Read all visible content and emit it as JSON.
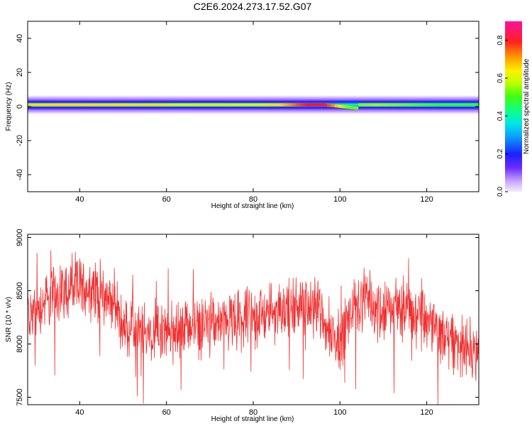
{
  "title": "C2E6.2024.273.17.52.G07",
  "chart_data": [
    {
      "type": "heatmap",
      "title": "C2E6.2024.273.17.52.G07",
      "xlabel": "Height of straight line (km)",
      "ylabel": "Frequency (Hz)",
      "xlim": [
        28,
        132
      ],
      "ylim": [
        -50,
        50
      ],
      "xticks": [
        40,
        60,
        80,
        100,
        120
      ],
      "yticks": [
        40,
        20,
        0,
        -20,
        -40
      ],
      "band_center_freq": 1,
      "band_half_width_hz": 4,
      "ridge_profile": {
        "x": [
          28,
          35,
          45,
          55,
          65,
          75,
          82,
          86,
          90,
          93,
          96,
          98,
          100,
          102,
          108,
          115,
          122,
          132
        ],
        "amplitude": [
          0.65,
          0.7,
          0.68,
          0.66,
          0.6,
          0.6,
          0.62,
          0.7,
          0.85,
          0.92,
          0.9,
          0.8,
          0.6,
          0.5,
          0.55,
          0.5,
          0.45,
          0.45
        ]
      },
      "colorbar": {
        "label": "Normalized spectral amplitude",
        "range": [
          0.0,
          0.9
        ],
        "ticks": [
          "0.0",
          "0.2",
          "0.4",
          "0.6",
          "0.8"
        ],
        "tick_values": [
          0.0,
          0.2,
          0.4,
          0.6,
          0.8
        ]
      }
    },
    {
      "type": "line",
      "xlabel": "Height of straight line (km)",
      "ylabel": "SNR (10 * v/v)",
      "xlim": [
        28,
        132
      ],
      "ylim": [
        7430,
        9030
      ],
      "xticks": [
        40,
        60,
        80,
        100,
        120
      ],
      "yticks": [
        9000,
        8500,
        8000,
        7500
      ],
      "color": "#f03030",
      "series": [
        {
          "x": [
            28,
            32,
            36,
            40,
            44,
            48,
            50,
            55,
            60,
            65,
            70,
            75,
            80,
            85,
            90,
            95,
            97,
            100,
            103,
            106,
            110,
            115,
            120,
            125,
            128,
            132
          ],
          "values": [
            8250,
            8400,
            8500,
            8550,
            8500,
            8400,
            8150,
            8100,
            8100,
            8150,
            8180,
            8200,
            8250,
            8300,
            8350,
            8350,
            8150,
            8050,
            8350,
            8400,
            8300,
            8350,
            8200,
            8050,
            8000,
            7950
          ]
        }
      ]
    }
  ]
}
